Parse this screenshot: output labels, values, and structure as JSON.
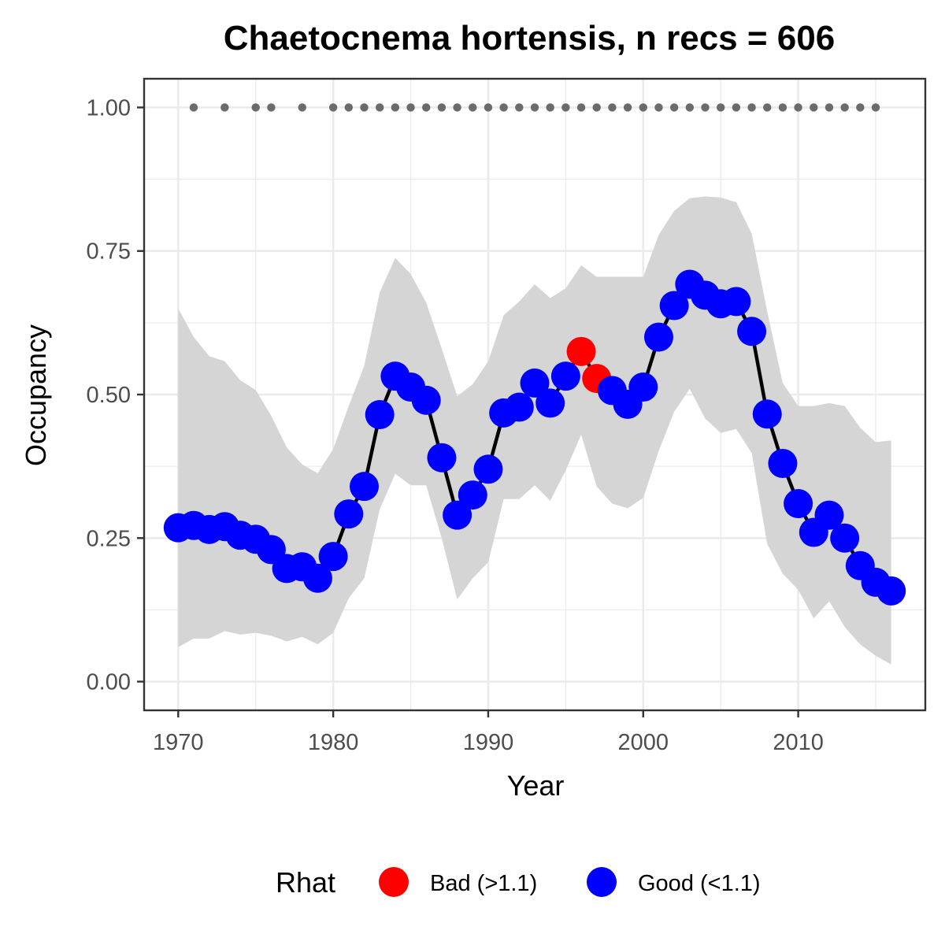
{
  "chart_data": {
    "type": "line",
    "title": "Chaetocnema hortensis, n recs = 606",
    "xlabel": "Year",
    "ylabel": "Occupancy",
    "xlim": [
      1967.8,
      1918.2
    ],
    "ylim": [
      -0.05,
      1.05
    ],
    "xticks": [
      1970,
      1980,
      1990,
      2000,
      2010
    ],
    "xtick_labels": [
      "1970",
      "1980",
      "1990",
      "2000",
      "2010"
    ],
    "yticks": [
      0,
      0.25,
      0.5,
      0.75,
      1
    ],
    "ytick_labels": [
      "0.00",
      "0.25",
      "0.50",
      "0.75",
      "1.00"
    ],
    "grid": true,
    "legend_position": "bottom",
    "legend_title": "Rhat",
    "colors": {
      "good": "#0000ff",
      "bad": "#ff0000",
      "line": "#000000",
      "ribbon": "#d5d5d5",
      "record_dots": "#6b6b6b",
      "grid": "#ebebeb",
      "panel_border": "#333333"
    },
    "legend": [
      {
        "label": "Bad (>1.1)",
        "color": "#ff0000"
      },
      {
        "label": "Good (<1.1)",
        "color": "#0000ff"
      }
    ],
    "years": [
      1970,
      1971,
      1972,
      1973,
      1974,
      1975,
      1976,
      1977,
      1978,
      1979,
      1980,
      1981,
      1982,
      1983,
      1984,
      1985,
      1986,
      1987,
      1988,
      1989,
      1990,
      1991,
      1992,
      1993,
      1994,
      1995,
      1996,
      1997,
      1998,
      1999,
      2000,
      2001,
      2002,
      2003,
      2004,
      2005,
      2006,
      2007,
      2008,
      2009,
      2010,
      2011,
      2012,
      2013,
      2014,
      2015,
      2016
    ],
    "occupancy": [
      0.268,
      0.272,
      0.265,
      0.27,
      0.255,
      0.248,
      0.23,
      0.197,
      0.2,
      0.18,
      0.218,
      0.292,
      0.34,
      0.465,
      0.532,
      0.513,
      0.49,
      0.39,
      0.29,
      0.325,
      0.37,
      0.468,
      0.478,
      0.52,
      0.485,
      0.532,
      0.575,
      0.528,
      0.507,
      0.483,
      0.513,
      0.6,
      0.655,
      0.692,
      0.673,
      0.658,
      0.662,
      0.61,
      0.466,
      0.38,
      0.31,
      0.26,
      0.29,
      0.25,
      0.202,
      0.173,
      0.158
    ],
    "rhat": [
      "Good",
      "Good",
      "Good",
      "Good",
      "Good",
      "Good",
      "Good",
      "Good",
      "Good",
      "Good",
      "Good",
      "Good",
      "Good",
      "Good",
      "Good",
      "Good",
      "Good",
      "Good",
      "Good",
      "Good",
      "Good",
      "Good",
      "Good",
      "Good",
      "Good",
      "Good",
      "Bad",
      "Bad",
      "Good",
      "Good",
      "Good",
      "Good",
      "Good",
      "Good",
      "Good",
      "Good",
      "Good",
      "Good",
      "Good",
      "Good",
      "Good",
      "Good",
      "Good",
      "Good",
      "Good",
      "Good",
      "Good"
    ],
    "ci_upper": [
      0.65,
      0.6,
      0.567,
      0.558,
      0.525,
      0.508,
      0.463,
      0.408,
      0.378,
      0.363,
      0.405,
      0.48,
      0.55,
      0.678,
      0.738,
      0.71,
      0.66,
      0.58,
      0.497,
      0.518,
      0.558,
      0.638,
      0.662,
      0.692,
      0.668,
      0.685,
      0.725,
      0.705,
      0.705,
      0.705,
      0.705,
      0.778,
      0.82,
      0.842,
      0.845,
      0.843,
      0.835,
      0.78,
      0.645,
      0.52,
      0.48,
      0.48,
      0.485,
      0.48,
      0.442,
      0.417,
      0.42
    ],
    "ci_lower": [
      0.06,
      0.075,
      0.075,
      0.088,
      0.082,
      0.085,
      0.08,
      0.07,
      0.078,
      0.065,
      0.085,
      0.145,
      0.18,
      0.3,
      0.362,
      0.342,
      0.342,
      0.25,
      0.143,
      0.18,
      0.208,
      0.318,
      0.318,
      0.342,
      0.315,
      0.368,
      0.43,
      0.34,
      0.31,
      0.302,
      0.32,
      0.402,
      0.47,
      0.51,
      0.458,
      0.433,
      0.44,
      0.398,
      0.24,
      0.188,
      0.16,
      0.11,
      0.14,
      0.095,
      0.065,
      0.045,
      0.03
    ],
    "record_years": [
      1971,
      1973,
      1975,
      1976,
      1978,
      1980,
      1981,
      1982,
      1983,
      1984,
      1985,
      1986,
      1987,
      1988,
      1989,
      1990,
      1991,
      1992,
      1993,
      1994,
      1995,
      1996,
      1997,
      1998,
      1999,
      2000,
      2001,
      2002,
      2003,
      2004,
      2005,
      2006,
      2007,
      2008,
      2009,
      2010,
      2011,
      2012,
      2013,
      2014,
      2015
    ],
    "record_value": 1.0
  }
}
